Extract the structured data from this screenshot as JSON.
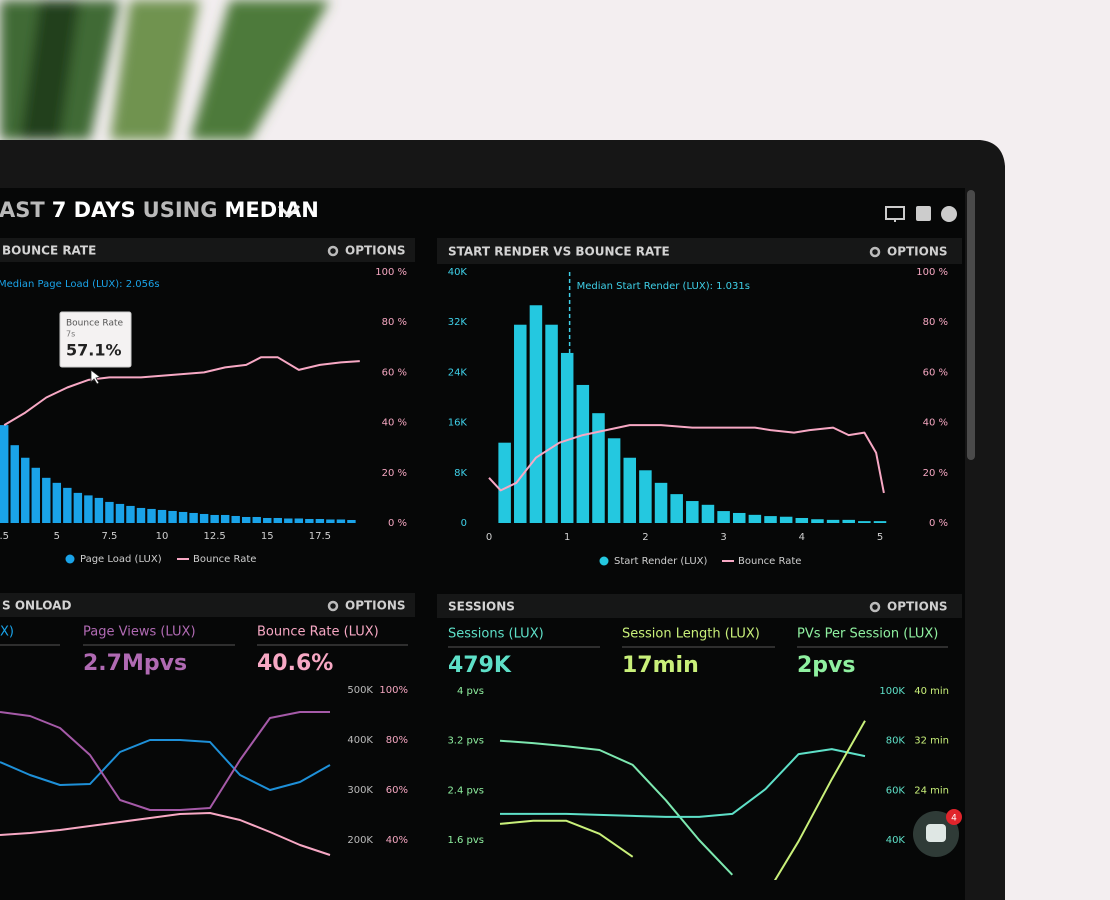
{
  "header": {
    "title": [
      "AST",
      "7 DAYS",
      "USING",
      "MEDIAN"
    ],
    "title_bold": [
      false,
      true,
      false,
      true
    ]
  },
  "panels": [
    {
      "title": "BOUNCE RATE",
      "options": "OPTIONS",
      "annotation": "Median Page Load (LUX): 2.056s",
      "tooltip": {
        "title": "Bounce Rate",
        "subtitle": "7s",
        "value": "57.1%"
      },
      "xlim": [
        2.3,
        19.55
      ],
      "xticks": [
        {
          "value": 2.5,
          "label": ".5"
        },
        5,
        7.5,
        10,
        12.5,
        15,
        17.5
      ],
      "axes": [
        {
          "ylim": [
            0,
            100
          ],
          "color": "#f4a6c0",
          "yticks": [
            {
              "value": 100,
              "label": "100 %"
            },
            {
              "value": 80,
              "label": "80 %"
            },
            {
              "value": 60,
              "label": "60 %"
            },
            {
              "value": 40,
              "label": "40 %"
            },
            {
              "value": 20,
              "label": "20 %"
            },
            {
              "value": 0,
              "label": "0 %"
            }
          ]
        }
      ],
      "series": [
        {
          "name": "Page Load (LUX)",
          "type": "bar",
          "color": "#1aa3e8",
          "axis": 0,
          "x": [
            2.5,
            3,
            3.5,
            4,
            4.5,
            5,
            5.5,
            6,
            6.5,
            7,
            7.5,
            8,
            8.5,
            9,
            9.5,
            10,
            10.5,
            11,
            11.5,
            12,
            12.5,
            13,
            13.5,
            14,
            14.5,
            15,
            15.5,
            16,
            16.5,
            17,
            17.5,
            18,
            18.5,
            19
          ],
          "values": [
            39,
            31,
            26,
            22,
            18,
            16,
            14,
            12,
            11,
            10,
            8.4,
            7.6,
            6.8,
            6,
            5.6,
            5.2,
            4.8,
            4.4,
            4,
            3.6,
            3.2,
            3.2,
            2.8,
            2.4,
            2.4,
            2,
            2,
            1.8,
            1.8,
            1.6,
            1.6,
            1.4,
            1.4,
            1.2
          ]
        },
        {
          "name": "Bounce Rate",
          "type": "line",
          "color": "#f7a8c4",
          "axis": 0,
          "x": [
            2.5,
            3.5,
            4.5,
            5.5,
            6.5,
            7.5,
            9,
            10.5,
            12,
            13,
            14,
            14.7,
            15.5,
            16.5,
            17.5,
            18.5,
            19.4
          ],
          "values": [
            39,
            44,
            50,
            54,
            57,
            58,
            58,
            59,
            60,
            62,
            63,
            66,
            66,
            61,
            63,
            64,
            64.5
          ]
        }
      ]
    },
    {
      "title": "START RENDER VS BOUNCE RATE",
      "options": "OPTIONS",
      "annotation": "Median Start Render (LUX): 1.031s",
      "median": 1.031,
      "xlim": [
        0,
        5
      ],
      "xticks": [
        0,
        1,
        2,
        3,
        4,
        5
      ],
      "axes": [
        {
          "ylim": [
            0,
            40000
          ],
          "color": "#3fd0e8",
          "yticks": [
            {
              "value": 40000,
              "label": "40K"
            },
            {
              "value": 32000,
              "label": "32K"
            },
            {
              "value": 24000,
              "label": "24K"
            },
            {
              "value": 16000,
              "label": "16K"
            },
            {
              "value": 8000,
              "label": "8K"
            },
            0
          ]
        },
        {
          "ylim": [
            0,
            100
          ],
          "color": "#f4a6c0",
          "yticks": [
            {
              "value": 100,
              "label": "100 %"
            },
            {
              "value": 80,
              "label": "80 %"
            },
            {
              "value": 60,
              "label": "60 %"
            },
            {
              "value": 40,
              "label": "40 %"
            },
            {
              "value": 20,
              "label": "20 %"
            },
            {
              "value": 0,
              "label": "0 %"
            }
          ]
        }
      ],
      "series": [
        {
          "name": "Start Render (LUX)",
          "type": "bar",
          "color": "#24c8e0",
          "axis": 0,
          "x": [
            0.2,
            0.4,
            0.6,
            0.8,
            1,
            1.2,
            1.4,
            1.6,
            1.8,
            2,
            2.2,
            2.4,
            2.6,
            2.8,
            3,
            3.2,
            3.4,
            3.6,
            3.8,
            4,
            4.2,
            4.4,
            4.6,
            4.8,
            5
          ],
          "values": [
            12800,
            31600,
            34700,
            31600,
            27100,
            22000,
            17500,
            13500,
            10400,
            8400,
            6400,
            4600,
            3500,
            2900,
            1900,
            1600,
            1300,
            1100,
            1000,
            800,
            600,
            500,
            500,
            300,
            300
          ]
        },
        {
          "name": "Bounce Rate",
          "type": "line",
          "color": "#f7a8c4",
          "axis": 1,
          "x": [
            0,
            0.15,
            0.35,
            0.6,
            0.9,
            1.2,
            1.5,
            1.8,
            2.2,
            2.6,
            3,
            3.4,
            3.6,
            3.9,
            4.1,
            4.4,
            4.6,
            4.8,
            4.95,
            5.05
          ],
          "values": [
            18,
            13,
            16,
            26,
            32,
            35,
            37,
            39,
            39,
            38,
            38,
            38,
            37,
            36,
            37,
            38,
            35,
            36,
            28,
            12
          ]
        }
      ]
    },
    {
      "title": "S ONLOAD",
      "options": "OPTIONS",
      "metrics": [
        {
          "label": "X)",
          "value": null,
          "color": "#1aa3e8"
        },
        {
          "label": "Page Views (LUX)",
          "value": "2.7Mpvs",
          "color": "#b06ab3"
        },
        {
          "label": "Bounce Rate (LUX)",
          "value": "40.6%",
          "color": "#f7a8c4"
        }
      ],
      "axes": [
        {
          "ylim": [
            200000,
            500000
          ],
          "color": "#bbbbbb",
          "yticks": [
            {
              "value": 500000,
              "label": "500K"
            },
            {
              "value": 400000,
              "label": "400K"
            },
            {
              "value": 300000,
              "label": "300K"
            },
            {
              "value": 200000,
              "label": "200K"
            }
          ]
        },
        {
          "ylim": [
            40,
            100
          ],
          "color": "#f4a6c0",
          "yticks": [
            {
              "value": 100,
              "label": "100%"
            },
            {
              "value": 80,
              "label": "80%"
            },
            {
              "value": 60,
              "label": "60%"
            },
            {
              "value": 40,
              "label": "40%"
            }
          ]
        }
      ],
      "series": [
        {
          "type": "line",
          "color": "#1e90d8",
          "axis": 0,
          "values": [
            356000,
            330000,
            310000,
            312000,
            376000,
            400000,
            400000,
            396000,
            330000,
            300000,
            316000,
            350000
          ]
        },
        {
          "type": "line",
          "color": "#a55aa8",
          "axis": 0,
          "values": [
            456000,
            448000,
            424000,
            370000,
            280000,
            260000,
            260000,
            264000,
            360000,
            444000,
            456000,
            456000
          ]
        },
        {
          "type": "line",
          "color": "#f7a8c4",
          "axis": 1,
          "values": [
            42,
            42.8,
            44,
            45.6,
            47.2,
            48.8,
            50.4,
            50.8,
            48,
            43.2,
            38,
            34
          ]
        }
      ]
    },
    {
      "title": "SESSIONS",
      "options": "OPTIONS",
      "metrics": [
        {
          "label": "Sessions (LUX)",
          "value": "479K",
          "color": "#5ee0c8"
        },
        {
          "label": "Session Length (LUX)",
          "value": "17min",
          "color": "#c9f07a"
        },
        {
          "label": "PVs Per Session (LUX)",
          "value": "2pvs",
          "color": "#8ff0a0"
        }
      ],
      "axes": [
        {
          "ylim": [
            1.6,
            4
          ],
          "color": "#8ff0a0",
          "yticks": [
            {
              "value": 4,
              "label": "4 pvs"
            },
            {
              "value": 3.2,
              "label": "3.2 pvs"
            },
            {
              "value": 2.4,
              "label": "2.4 pvs"
            },
            {
              "value": 1.6,
              "label": "1.6 pvs"
            }
          ]
        },
        {
          "ylim": [
            40000,
            100000
          ],
          "color": "#5ee0c8",
          "yticks": [
            {
              "value": 100000,
              "label": "100K"
            },
            {
              "value": 80000,
              "label": "80K"
            },
            {
              "value": 60000,
              "label": "60K"
            },
            {
              "value": 40000,
              "label": "40K"
            }
          ]
        },
        {
          "ylim": [
            16,
            40
          ],
          "color": "#c9f07a",
          "yticks": [
            {
              "value": 40,
              "label": "40 min"
            },
            {
              "value": 32,
              "label": "32 min"
            },
            {
              "value": 24,
              "label": "24 min"
            }
          ]
        }
      ],
      "series": [
        {
          "type": "line",
          "color": "#7de8b0",
          "axis": 0,
          "values": [
            3.2,
            3.16,
            3.11,
            3.05,
            2.81,
            2.24,
            1.6,
            1.04,
            null,
            null,
            null,
            null
          ]
        },
        {
          "type": "line",
          "color": "#5ee0c8",
          "axis": 1,
          "values": [
            50500,
            50500,
            50500,
            50100,
            49700,
            49300,
            49300,
            50500,
            60500,
            74600,
            76600,
            73800
          ]
        },
        {
          "type": "line",
          "color": "#c9f07a",
          "axis": 2,
          "values": [
            18.6,
            19.1,
            19.1,
            17,
            13.3,
            null,
            null,
            null,
            7,
            15.8,
            25.8,
            35.2
          ]
        }
      ]
    }
  ],
  "badge": "4"
}
